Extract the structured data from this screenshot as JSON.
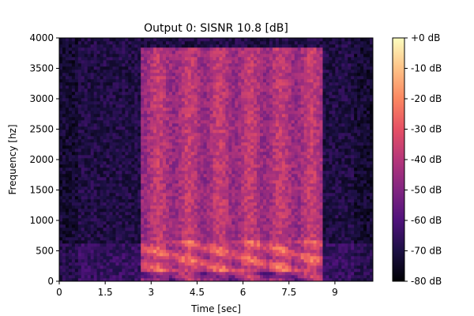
{
  "chart_data": {
    "type": "heatmap",
    "title": "Output 0: SISNR 10.8 [dB]",
    "xlabel": "Time [sec]",
    "ylabel": "Frequency [hz]",
    "xlim": [
      0,
      10.24
    ],
    "ylim": [
      0,
      4000
    ],
    "x_ticks": [
      {
        "value": 0,
        "label": "0"
      },
      {
        "value": 1.5,
        "label": "1.5"
      },
      {
        "value": 3,
        "label": "3"
      },
      {
        "value": 4.5,
        "label": "4.5"
      },
      {
        "value": 6,
        "label": "6"
      },
      {
        "value": 7.5,
        "label": "7.5"
      },
      {
        "value": 9,
        "label": "9"
      }
    ],
    "y_ticks": [
      {
        "value": 0,
        "label": "0"
      },
      {
        "value": 500,
        "label": "500"
      },
      {
        "value": 1000,
        "label": "1000"
      },
      {
        "value": 1500,
        "label": "1500"
      },
      {
        "value": 2000,
        "label": "2000"
      },
      {
        "value": 2500,
        "label": "2500"
      },
      {
        "value": 3000,
        "label": "3000"
      },
      {
        "value": 3500,
        "label": "3500"
      },
      {
        "value": 4000,
        "label": "4000"
      }
    ],
    "colorbar": {
      "colormap": "magma",
      "range": [
        -80,
        0
      ],
      "ticks": [
        {
          "value": 0,
          "label": "+0 dB"
        },
        {
          "value": -10,
          "label": "-10 dB"
        },
        {
          "value": -20,
          "label": "-20 dB"
        },
        {
          "value": -30,
          "label": "-30 dB"
        },
        {
          "value": -40,
          "label": "-40 dB"
        },
        {
          "value": -50,
          "label": "-50 dB"
        },
        {
          "value": -60,
          "label": "-60 dB"
        },
        {
          "value": -70,
          "label": "-70 dB"
        },
        {
          "value": -80,
          "label": "-80 dB"
        }
      ]
    },
    "speech_region": {
      "t_start": 2.65,
      "t_end": 8.65,
      "f_max": 3850
    },
    "grid": false
  }
}
